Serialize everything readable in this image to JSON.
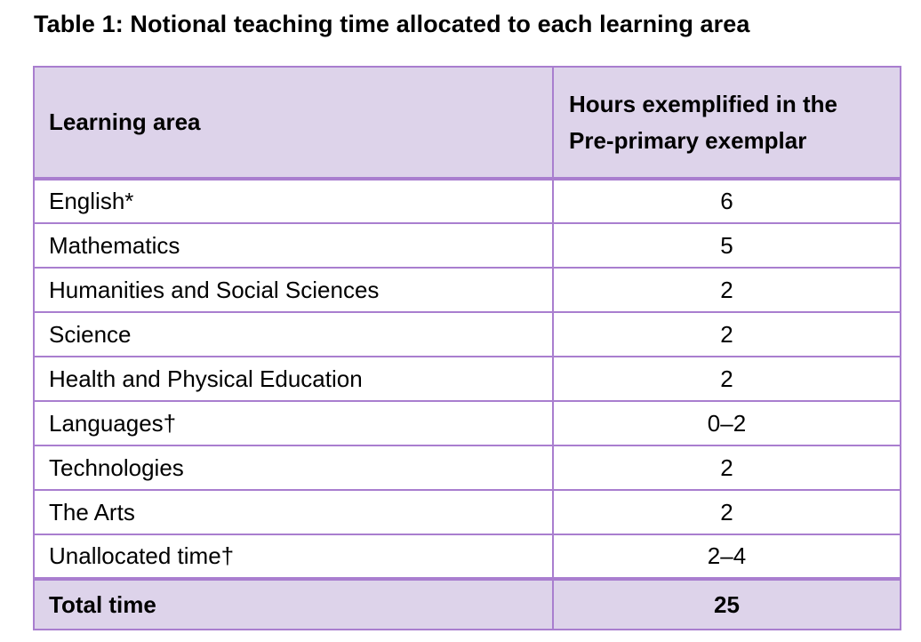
{
  "caption": "Table 1: Notional teaching time allocated to each learning area",
  "table": {
    "headers": {
      "area": "Learning area",
      "hours_line1": "Hours exemplified in the",
      "hours_line2": "Pre-primary exemplar"
    },
    "rows": [
      {
        "area": "English*",
        "hours": "6"
      },
      {
        "area": "Mathematics",
        "hours": "5"
      },
      {
        "area": "Humanities and Social Sciences",
        "hours": "2"
      },
      {
        "area": "Science",
        "hours": "2"
      },
      {
        "area": "Health and Physical Education",
        "hours": "2"
      },
      {
        "area": "Languages†",
        "hours": "0–2"
      },
      {
        "area": "Technologies",
        "hours": "2"
      },
      {
        "area": "The Arts",
        "hours": "2"
      },
      {
        "area": "Unallocated time†",
        "hours": "2–4"
      }
    ],
    "total": {
      "label": "Total time",
      "hours": "25"
    }
  },
  "colors": {
    "border": "#a97ecf",
    "header_fill": "#ddd3ea"
  }
}
